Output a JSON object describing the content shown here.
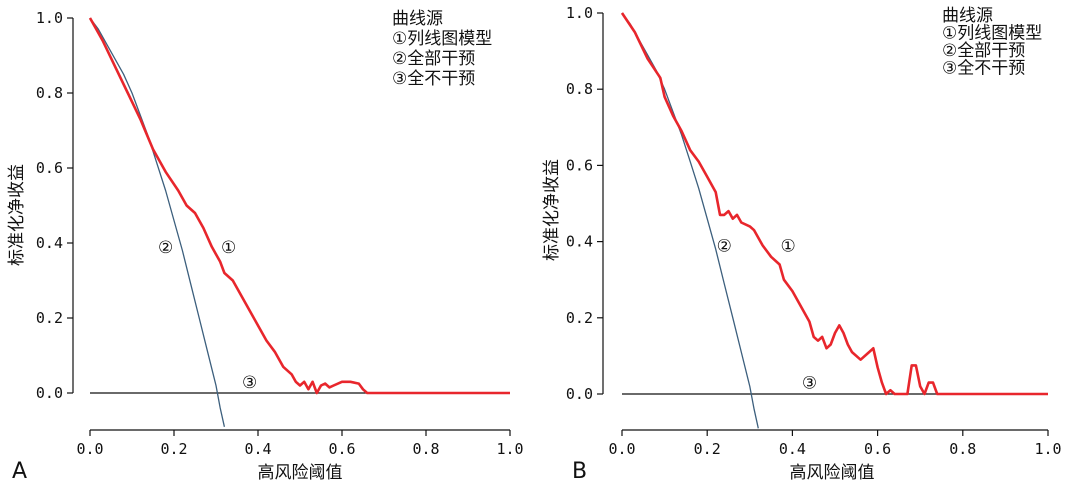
{
  "chart_data": [
    {
      "type": "line",
      "panel_label": "A",
      "xlabel": "高风险阈值",
      "ylabel": "标准化净收益",
      "xlim": [
        0,
        1
      ],
      "ylim": [
        -0.1,
        1
      ],
      "x_ticks": [
        0.0,
        0.2,
        0.4,
        0.6,
        0.8,
        1.0
      ],
      "x_tick_labels": [
        "0.0",
        "0.2",
        "0.4",
        "0.6",
        "0.8",
        "1.0"
      ],
      "y_ticks": [
        0.0,
        0.2,
        0.4,
        0.6,
        0.8,
        1.0
      ],
      "y_tick_labels": [
        "0.0",
        "0.2",
        "0.4",
        "0.6",
        "0.8",
        "1.0"
      ],
      "grid": false,
      "legend": {
        "position": "top-right",
        "title": "曲线源",
        "entries": [
          "①列线图模型",
          "②全部干预",
          "③全不干预"
        ]
      },
      "series": [
        {
          "marker": "①",
          "color": "#e8262c",
          "marker_at": [
            0.33,
            0.39
          ],
          "x": [
            0.0,
            0.03,
            0.06,
            0.09,
            0.12,
            0.15,
            0.18,
            0.21,
            0.23,
            0.25,
            0.27,
            0.29,
            0.31,
            0.32,
            0.34,
            0.36,
            0.38,
            0.4,
            0.42,
            0.44,
            0.46,
            0.48,
            0.49,
            0.5,
            0.51,
            0.52,
            0.53,
            0.54,
            0.55,
            0.56,
            0.57,
            0.58,
            0.6,
            0.62,
            0.64,
            0.65,
            0.66,
            0.7,
            0.8,
            0.9,
            1.0
          ],
          "y": [
            1.0,
            0.94,
            0.87,
            0.8,
            0.73,
            0.65,
            0.59,
            0.54,
            0.5,
            0.48,
            0.44,
            0.39,
            0.35,
            0.32,
            0.3,
            0.26,
            0.22,
            0.18,
            0.14,
            0.11,
            0.07,
            0.05,
            0.03,
            0.02,
            0.03,
            0.01,
            0.03,
            0.0,
            0.02,
            0.025,
            0.015,
            0.02,
            0.03,
            0.03,
            0.025,
            0.01,
            0.0,
            0.0,
            0.0,
            0.0,
            0.0
          ]
        },
        {
          "marker": "②",
          "color": "#3c5f7d",
          "marker_at": [
            0.18,
            0.39
          ],
          "x": [
            0.0,
            0.02,
            0.04,
            0.06,
            0.08,
            0.1,
            0.12,
            0.14,
            0.16,
            0.18,
            0.2,
            0.22,
            0.24,
            0.26,
            0.28,
            0.3,
            0.31,
            0.32
          ],
          "y": [
            1.0,
            0.97,
            0.93,
            0.89,
            0.85,
            0.8,
            0.74,
            0.68,
            0.61,
            0.54,
            0.46,
            0.38,
            0.29,
            0.2,
            0.11,
            0.02,
            -0.04,
            -0.09
          ]
        },
        {
          "marker": "③",
          "color": "#111111",
          "marker_at": [
            0.38,
            0.03
          ],
          "x": [
            0.0,
            1.0
          ],
          "y": [
            0.0,
            0.0
          ]
        }
      ]
    },
    {
      "type": "line",
      "panel_label": "B",
      "xlabel": "高风险阈值",
      "ylabel": "标准化净收益",
      "xlim": [
        0,
        1
      ],
      "ylim": [
        -0.1,
        1
      ],
      "x_ticks": [
        0.0,
        0.2,
        0.4,
        0.6,
        0.8,
        1.0
      ],
      "x_tick_labels": [
        "0.0",
        "0.2",
        "0.4",
        "0.6",
        "0.8",
        "1.0"
      ],
      "y_ticks": [
        0.0,
        0.2,
        0.4,
        0.6,
        0.8,
        1.0
      ],
      "y_tick_labels": [
        "0.0",
        "0.2",
        "0.4",
        "0.6",
        "0.8",
        "1.0"
      ],
      "grid": false,
      "legend": {
        "position": "top-right",
        "title": "曲线源",
        "entries": [
          "①列线图模型",
          "②全部干预",
          "③全不干预"
        ]
      },
      "series": [
        {
          "marker": "①",
          "color": "#e8262c",
          "marker_at": [
            0.39,
            0.39
          ],
          "x": [
            0.0,
            0.03,
            0.06,
            0.09,
            0.1,
            0.12,
            0.14,
            0.16,
            0.18,
            0.2,
            0.22,
            0.23,
            0.24,
            0.25,
            0.26,
            0.27,
            0.28,
            0.3,
            0.31,
            0.33,
            0.35,
            0.37,
            0.38,
            0.4,
            0.42,
            0.44,
            0.45,
            0.46,
            0.47,
            0.48,
            0.49,
            0.5,
            0.51,
            0.52,
            0.53,
            0.54,
            0.56,
            0.58,
            0.59,
            0.6,
            0.61,
            0.62,
            0.63,
            0.64,
            0.65,
            0.66,
            0.67,
            0.68,
            0.69,
            0.7,
            0.71,
            0.72,
            0.73,
            0.74,
            0.75,
            0.8,
            0.9,
            1.0
          ],
          "y": [
            1.0,
            0.95,
            0.88,
            0.83,
            0.78,
            0.73,
            0.69,
            0.64,
            0.61,
            0.57,
            0.53,
            0.47,
            0.47,
            0.48,
            0.46,
            0.47,
            0.45,
            0.44,
            0.43,
            0.39,
            0.36,
            0.34,
            0.3,
            0.27,
            0.23,
            0.19,
            0.15,
            0.14,
            0.15,
            0.12,
            0.13,
            0.16,
            0.18,
            0.16,
            0.13,
            0.11,
            0.09,
            0.11,
            0.12,
            0.07,
            0.03,
            0.0,
            0.01,
            0.0,
            0.0,
            0.0,
            0.0,
            0.075,
            0.075,
            0.02,
            0.0,
            0.03,
            0.03,
            0.0,
            0.0,
            0.0,
            0.0,
            0.0
          ]
        },
        {
          "marker": "②",
          "color": "#3c5f7d",
          "marker_at": [
            0.24,
            0.39
          ],
          "x": [
            0.0,
            0.02,
            0.04,
            0.06,
            0.08,
            0.1,
            0.12,
            0.14,
            0.16,
            0.18,
            0.2,
            0.22,
            0.24,
            0.26,
            0.28,
            0.3,
            0.31,
            0.32
          ],
          "y": [
            1.0,
            0.97,
            0.93,
            0.89,
            0.85,
            0.8,
            0.74,
            0.68,
            0.61,
            0.54,
            0.46,
            0.38,
            0.29,
            0.2,
            0.11,
            0.02,
            -0.04,
            -0.09
          ]
        },
        {
          "marker": "③",
          "color": "#111111",
          "marker_at": [
            0.44,
            0.03
          ],
          "x": [
            0.0,
            1.0
          ],
          "y": [
            0.0,
            0.0
          ]
        }
      ]
    }
  ]
}
